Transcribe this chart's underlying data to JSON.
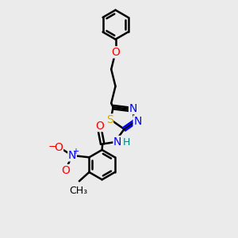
{
  "bg_color": "#ebebeb",
  "bond_color": "#000000",
  "bond_width": 1.8,
  "atom_colors": {
    "N": "#0000ff",
    "O": "#ff0000",
    "S": "#ccaa00",
    "H": "#008080",
    "C": "#000000"
  },
  "font_size": 9,
  "fig_size": [
    3.0,
    3.0
  ],
  "dpi": 100,
  "xlim": [
    0,
    10
  ],
  "ylim": [
    0,
    10
  ]
}
